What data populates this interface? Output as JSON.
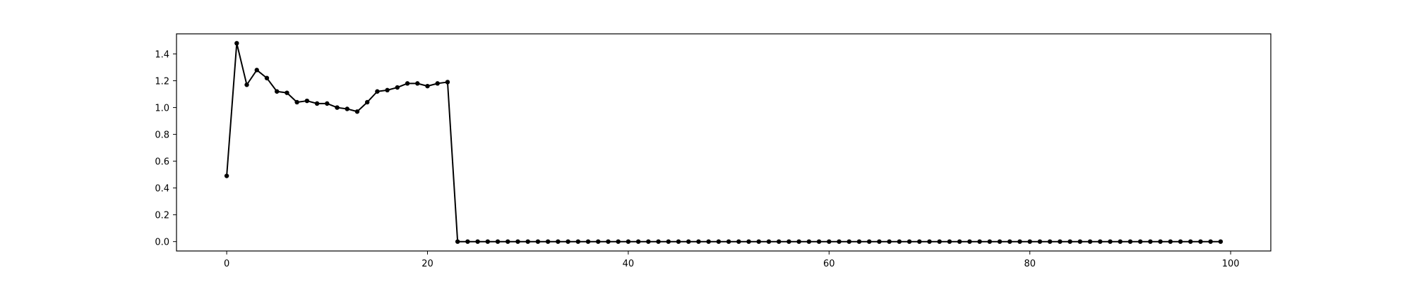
{
  "chart_data": {
    "type": "line",
    "title": "",
    "xlabel": "",
    "ylabel": "",
    "xlim": [
      -5,
      104
    ],
    "ylim": [
      -0.07,
      1.55
    ],
    "grid": false,
    "line_color": "#000000",
    "marker": "dot",
    "x_ticks": [
      0,
      20,
      40,
      60,
      80,
      100
    ],
    "x_tick_labels": [
      "0",
      "20",
      "40",
      "60",
      "80",
      "100"
    ],
    "y_ticks": [
      0.0,
      0.2,
      0.4,
      0.6,
      0.8,
      1.0,
      1.2,
      1.4
    ],
    "y_tick_labels": [
      "0.0",
      "0.2",
      "0.4",
      "0.6",
      "0.8",
      "1.0",
      "1.2",
      "1.4"
    ],
    "series": [
      {
        "values": [
          0.49,
          1.48,
          1.17,
          1.28,
          1.22,
          1.12,
          1.11,
          1.04,
          1.05,
          1.03,
          1.03,
          1.0,
          0.99,
          0.97,
          1.04,
          1.12,
          1.13,
          1.15,
          1.18,
          1.18,
          1.16,
          1.18,
          1.19,
          0.0,
          0.0,
          0.0,
          0.0,
          0.0,
          0.0,
          0.0,
          0.0,
          0.0,
          0.0,
          0.0,
          0.0,
          0.0,
          0.0,
          0.0,
          0.0,
          0.0,
          0.0,
          0.0,
          0.0,
          0.0,
          0.0,
          0.0,
          0.0,
          0.0,
          0.0,
          0.0,
          0.0,
          0.0,
          0.0,
          0.0,
          0.0,
          0.0,
          0.0,
          0.0,
          0.0,
          0.0,
          0.0,
          0.0,
          0.0,
          0.0,
          0.0,
          0.0,
          0.0,
          0.0,
          0.0,
          0.0,
          0.0,
          0.0,
          0.0,
          0.0,
          0.0,
          0.0,
          0.0,
          0.0,
          0.0,
          0.0,
          0.0,
          0.0,
          0.0,
          0.0,
          0.0,
          0.0,
          0.0,
          0.0,
          0.0,
          0.0,
          0.0,
          0.0,
          0.0,
          0.0,
          0.0,
          0.0,
          0.0,
          0.0,
          0.0,
          0.0
        ]
      }
    ]
  }
}
